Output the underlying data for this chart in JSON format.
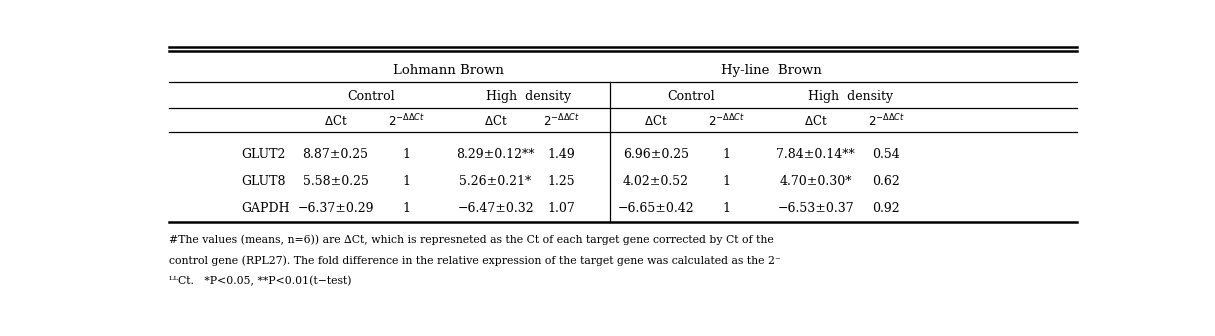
{
  "title_row1_left": "Lohmann Brown",
  "title_row1_right": "Hy-line  Brown",
  "title_row2_left1": "Control",
  "title_row2_left2": "High  density",
  "title_row2_right1": "Control",
  "title_row2_right2": "High  density",
  "row_labels": [
    "GLUT2",
    "GLUT8",
    "GAPDH"
  ],
  "data": [
    [
      "8.87±0.25",
      "1",
      "8.29±0.12**",
      "1.49",
      "6.96±0.25",
      "1",
      "7.84±0.14**",
      "0.54"
    ],
    [
      "5.58±0.25",
      "1",
      "5.26±0.21*",
      "1.25",
      "4.02±0.52",
      "1",
      "4.70±0.30*",
      "0.62"
    ],
    [
      "−6.37±0.29",
      "1",
      "−6.47±0.32",
      "1.07",
      "−6.65±0.42",
      "1",
      "−6.53±0.37",
      "0.92"
    ]
  ],
  "footnote_line1": "#The values (means, n=6)) are ∆Ct, which is represneted as the Ct of each target gene corrected by Ct of the",
  "footnote_line2": "control gene (RPL27). The fold difference in the relative expression of the target gene was calculated as the 2⁻",
  "footnote_line3": "ᴸᴸCt.   *P<0.05, **P<0.01(t−test)",
  "bg_color": "#ffffff",
  "text_color": "#000000",
  "font_size": 9.0
}
